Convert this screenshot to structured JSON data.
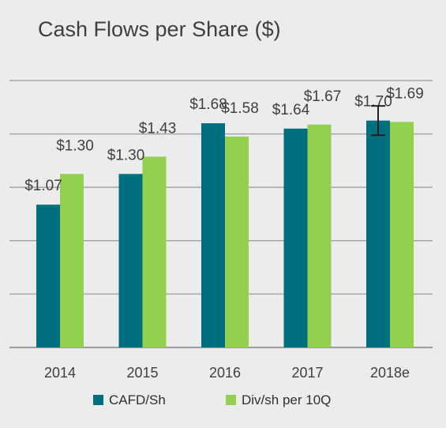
{
  "chart_data": {
    "type": "bar",
    "title": "Cash Flows per Share ($)",
    "categories": [
      "2014",
      "2015",
      "2016",
      "2017",
      "2018e"
    ],
    "series": [
      {
        "name": "CAFD/Sh",
        "color": "#00707f",
        "values": [
          1.07,
          1.3,
          1.68,
          1.64,
          1.7
        ],
        "labels": [
          "$1.07",
          "$1.30",
          "$1.68",
          "$1.64",
          "$1.70"
        ]
      },
      {
        "name": "Div/sh per 10Q",
        "color": "#92d050",
        "values": [
          1.3,
          1.43,
          1.58,
          1.67,
          1.69
        ],
        "labels": [
          "$1.30",
          "$1.43",
          "$1.58",
          "$1.67",
          "$1.69"
        ]
      }
    ],
    "error_bar": {
      "category": "2018e",
      "series": "CAFD/Sh",
      "low": 1.59,
      "high": 1.81
    },
    "ylim": [
      0,
      2.0
    ],
    "grid": true,
    "legend": "bottom"
  }
}
